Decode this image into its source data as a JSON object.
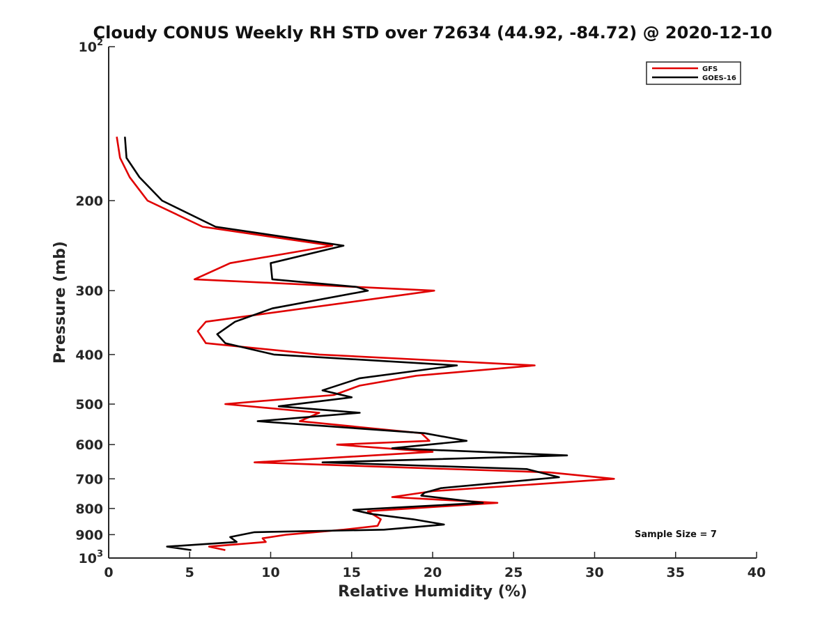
{
  "chart_data": {
    "type": "line",
    "title": "Cloudy CONUS Weekly RH STD over 72634 (44.92, -84.72) @ 2020-12-10",
    "xlabel": "Relative Humidity (%)",
    "ylabel": "Pressure (mb)",
    "xlim": [
      0,
      40
    ],
    "ylim": [
      100,
      1000
    ],
    "yscale": "log",
    "y_reversed": true,
    "grid": false,
    "legend_position": "top-right",
    "xticks": [
      0,
      5,
      10,
      15,
      20,
      25,
      30,
      35,
      40
    ],
    "yticks": [
      {
        "value": 100,
        "label": "10",
        "exp": "2"
      },
      {
        "value": 200,
        "label": "200"
      },
      {
        "value": 300,
        "label": "300"
      },
      {
        "value": 400,
        "label": "400"
      },
      {
        "value": 500,
        "label": "500"
      },
      {
        "value": 600,
        "label": "600"
      },
      {
        "value": 700,
        "label": "700"
      },
      {
        "value": 800,
        "label": "800"
      },
      {
        "value": 900,
        "label": "900"
      },
      {
        "value": 1000,
        "label": "10",
        "exp": "3"
      }
    ],
    "annotation": "Sample Size = 7",
    "series": [
      {
        "name": "GFS",
        "color": "#e00000",
        "points": [
          [
            0.5,
            150
          ],
          [
            0.7,
            165
          ],
          [
            1.3,
            180
          ],
          [
            2.4,
            200
          ],
          [
            5.8,
            225
          ],
          [
            13.8,
            245
          ],
          [
            7.5,
            265
          ],
          [
            5.3,
            285
          ],
          [
            20.1,
            300
          ],
          [
            6.0,
            345
          ],
          [
            5.5,
            360
          ],
          [
            6.0,
            380
          ],
          [
            13.0,
            400
          ],
          [
            26.3,
            420
          ],
          [
            19.0,
            440
          ],
          [
            15.5,
            460
          ],
          [
            13.9,
            480
          ],
          [
            7.2,
            500
          ],
          [
            13.0,
            520
          ],
          [
            11.8,
            540
          ],
          [
            19.3,
            570
          ],
          [
            19.8,
            590
          ],
          [
            14.1,
            600
          ],
          [
            20.0,
            620
          ],
          [
            9.0,
            650
          ],
          [
            27.2,
            680
          ],
          [
            31.2,
            700
          ],
          [
            27.0,
            715
          ],
          [
            20.0,
            740
          ],
          [
            17.5,
            760
          ],
          [
            24.0,
            780
          ],
          [
            16.0,
            810
          ],
          [
            16.8,
            840
          ],
          [
            16.6,
            865
          ],
          [
            14.5,
            880
          ],
          [
            11.0,
            900
          ],
          [
            9.5,
            915
          ],
          [
            9.7,
            930
          ],
          [
            6.2,
            950
          ],
          [
            7.2,
            965
          ]
        ]
      },
      {
        "name": "GOES-16",
        "color": "#000000",
        "points": [
          [
            1.0,
            150
          ],
          [
            1.1,
            165
          ],
          [
            1.9,
            180
          ],
          [
            3.3,
            200
          ],
          [
            6.6,
            225
          ],
          [
            14.5,
            245
          ],
          [
            10.0,
            265
          ],
          [
            10.1,
            285
          ],
          [
            15.3,
            295
          ],
          [
            16.0,
            300
          ],
          [
            10.1,
            325
          ],
          [
            7.8,
            345
          ],
          [
            6.7,
            365
          ],
          [
            7.2,
            380
          ],
          [
            10.2,
            400
          ],
          [
            21.5,
            420
          ],
          [
            15.5,
            445
          ],
          [
            13.2,
            470
          ],
          [
            15.0,
            485
          ],
          [
            10.5,
            505
          ],
          [
            15.5,
            520
          ],
          [
            9.2,
            540
          ],
          [
            19.5,
            570
          ],
          [
            22.1,
            590
          ],
          [
            17.5,
            610
          ],
          [
            28.3,
            630
          ],
          [
            13.2,
            650
          ],
          [
            25.8,
            670
          ],
          [
            27.8,
            695
          ],
          [
            20.5,
            730
          ],
          [
            19.5,
            745
          ],
          [
            19.3,
            755
          ],
          [
            23.1,
            780
          ],
          [
            15.1,
            805
          ],
          [
            16.2,
            820
          ],
          [
            18.8,
            840
          ],
          [
            20.7,
            860
          ],
          [
            17.0,
            880
          ],
          [
            9.0,
            890
          ],
          [
            7.5,
            910
          ],
          [
            7.9,
            930
          ],
          [
            3.6,
            950
          ],
          [
            5.1,
            965
          ]
        ]
      }
    ]
  }
}
